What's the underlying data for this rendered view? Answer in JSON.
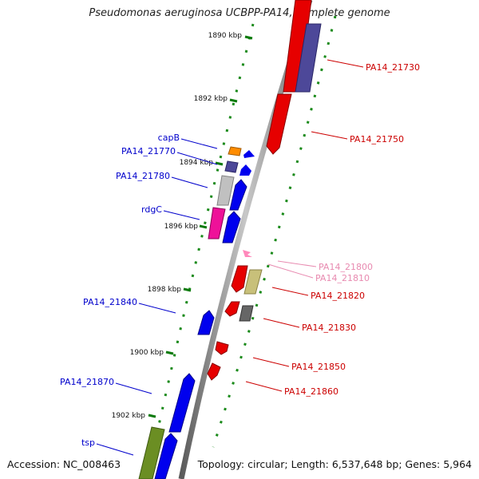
{
  "title": "Pseudomonas aeruginosa UCBPP-PA14, complete genome",
  "footer": {
    "accession": "Accession: NC_008463",
    "summary": "Topology: circular; Length: 6,537,648 bp; Genes: 5,964"
  },
  "scale_ticks": [
    "1890 kbp",
    "1892 kbp",
    "1894 kbp",
    "1896 kbp",
    "1898 kbp",
    "1900 kbp",
    "1902 kbp"
  ],
  "genes_left": [
    {
      "label": "capB",
      "color": "#0000cc"
    },
    {
      "label": "PA14_21770",
      "color": "#0000cc"
    },
    {
      "label": "PA14_21780",
      "color": "#0000cc"
    },
    {
      "label": "rdgC",
      "color": "#0000cc"
    },
    {
      "label": "PA14_21840",
      "color": "#0000cc"
    },
    {
      "label": "PA14_21870",
      "color": "#0000cc"
    },
    {
      "label": "tsp",
      "color": "#0000cc"
    }
  ],
  "genes_right": [
    {
      "label": "PA14_21730",
      "color": "#cc0000"
    },
    {
      "label": "PA14_21750",
      "color": "#cc0000"
    },
    {
      "label": "PA14_21800",
      "color": "#e88ab0"
    },
    {
      "label": "PA14_21810",
      "color": "#e88ab0"
    },
    {
      "label": "PA14_21820",
      "color": "#cc0000"
    },
    {
      "label": "PA14_21830",
      "color": "#cc0000"
    },
    {
      "label": "PA14_21850",
      "color": "#cc0000"
    },
    {
      "label": "PA14_21860",
      "color": "#cc0000"
    }
  ]
}
